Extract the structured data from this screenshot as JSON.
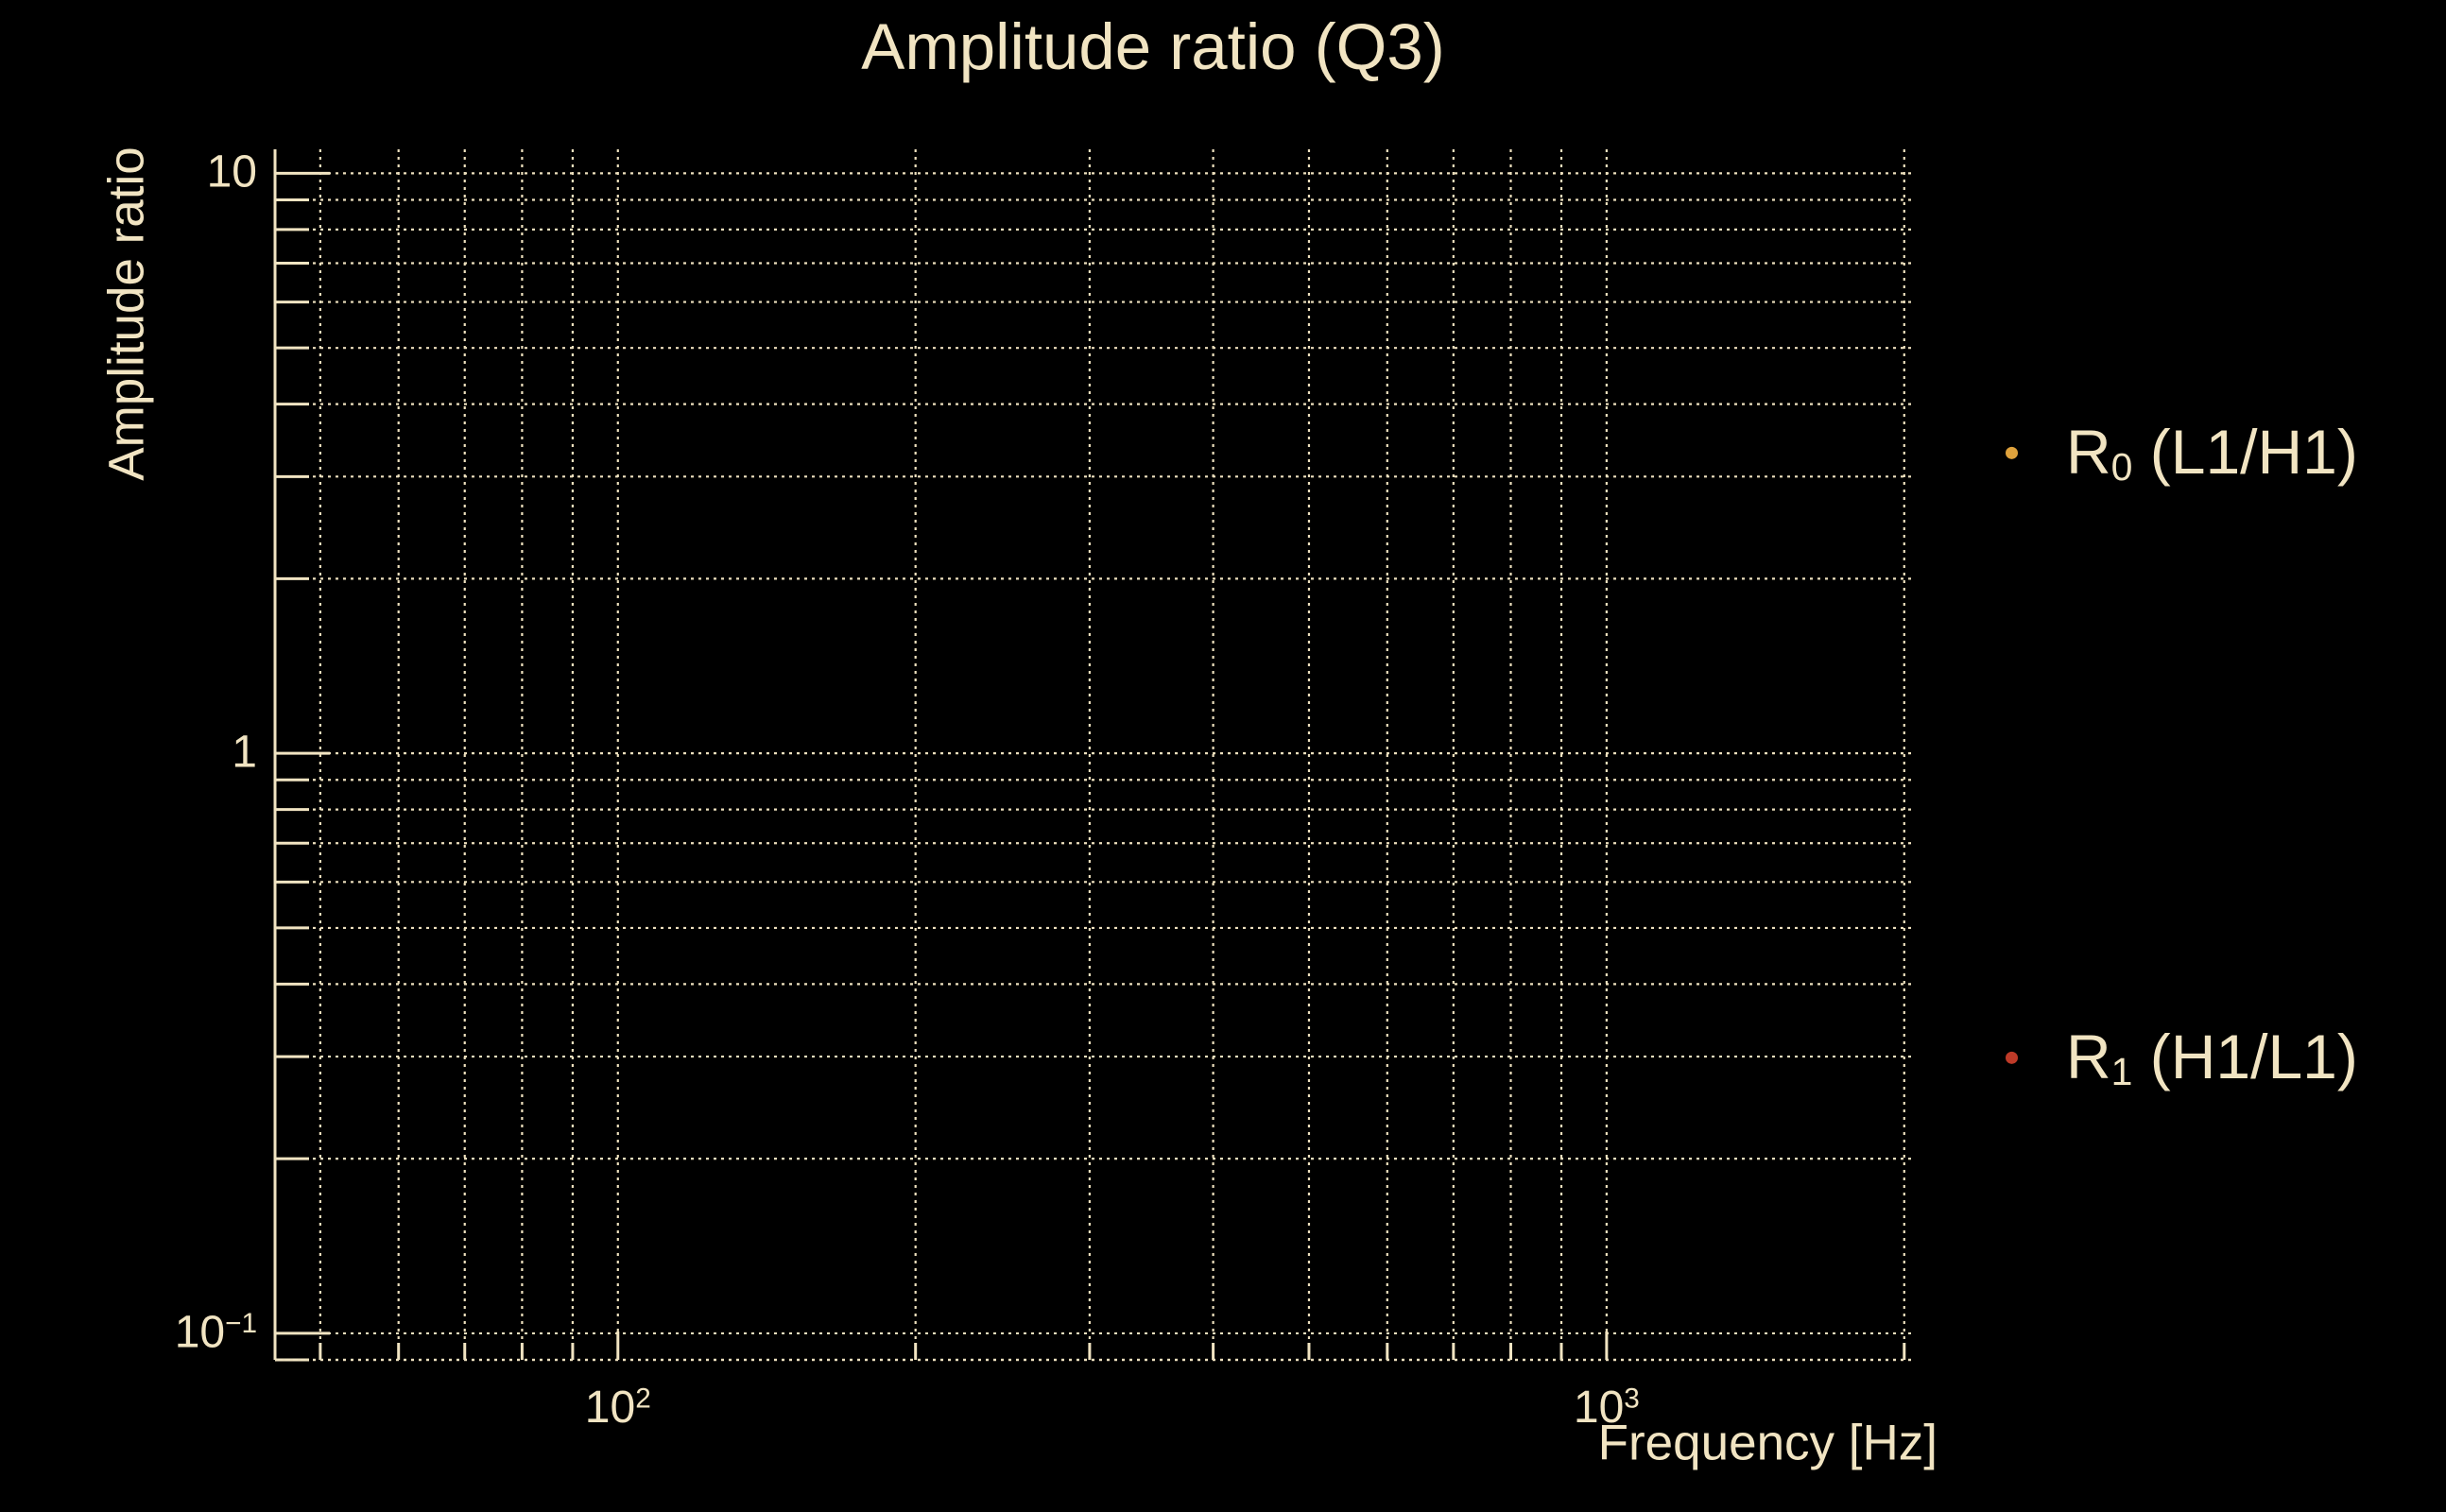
{
  "chart_data": {
    "type": "scatter",
    "title": "Amplitude ratio (Q3)",
    "xlabel": "Frequency [Hz]",
    "ylabel": "Amplitude ratio",
    "x_scale": "log",
    "y_scale": "log",
    "xlim": [
      45,
      2050
    ],
    "ylim": [
      0.09,
      11
    ],
    "grid": "dotted gridlines at every major and minor log tick, both axes",
    "legend_position": "right margin, outside plot area",
    "x_major_ticks": [
      {
        "value": 100,
        "base": "10",
        "sup": "2"
      },
      {
        "value": 1000,
        "base": "10",
        "sup": "3"
      }
    ],
    "x_minor_ticks": [
      50,
      60,
      70,
      80,
      90,
      200,
      300,
      400,
      500,
      600,
      700,
      800,
      900,
      2000
    ],
    "y_major_ticks": [
      {
        "value": 10,
        "base": "10",
        "sup": ""
      },
      {
        "value": 1,
        "base": "1",
        "sup": ""
      },
      {
        "value": 0.1,
        "base": "10",
        "sup": "−1"
      }
    ],
    "y_minor_ticks": [
      9,
      8,
      7,
      6,
      5,
      4,
      3,
      2,
      0.9,
      0.8,
      0.7,
      0.6,
      0.5,
      0.4,
      0.3,
      0.2,
      0.09
    ],
    "series": [
      {
        "name": "R0 (L1/H1)",
        "marker_color": "#DFA23C",
        "points": [],
        "note": "no data points visible inside axes"
      },
      {
        "name": "R1 (H1/L1)",
        "marker_color": "#BE3A28",
        "points": [],
        "note": "no data points visible inside axes"
      }
    ]
  },
  "legend": {
    "entries": [
      {
        "base": "R",
        "sub": "0",
        "rest": " (L1/H1)",
        "marker_color": "#DFA23C"
      },
      {
        "base": "R",
        "sub": "1",
        "rest": " (H1/L1)",
        "marker_color": "#BE3A28"
      }
    ]
  },
  "colors": {
    "background": "#000000",
    "foreground": "#F1E4C2",
    "grid": "#EDE0BE",
    "marker_r0": "#DFA23C",
    "marker_r1": "#BE3A28"
  }
}
